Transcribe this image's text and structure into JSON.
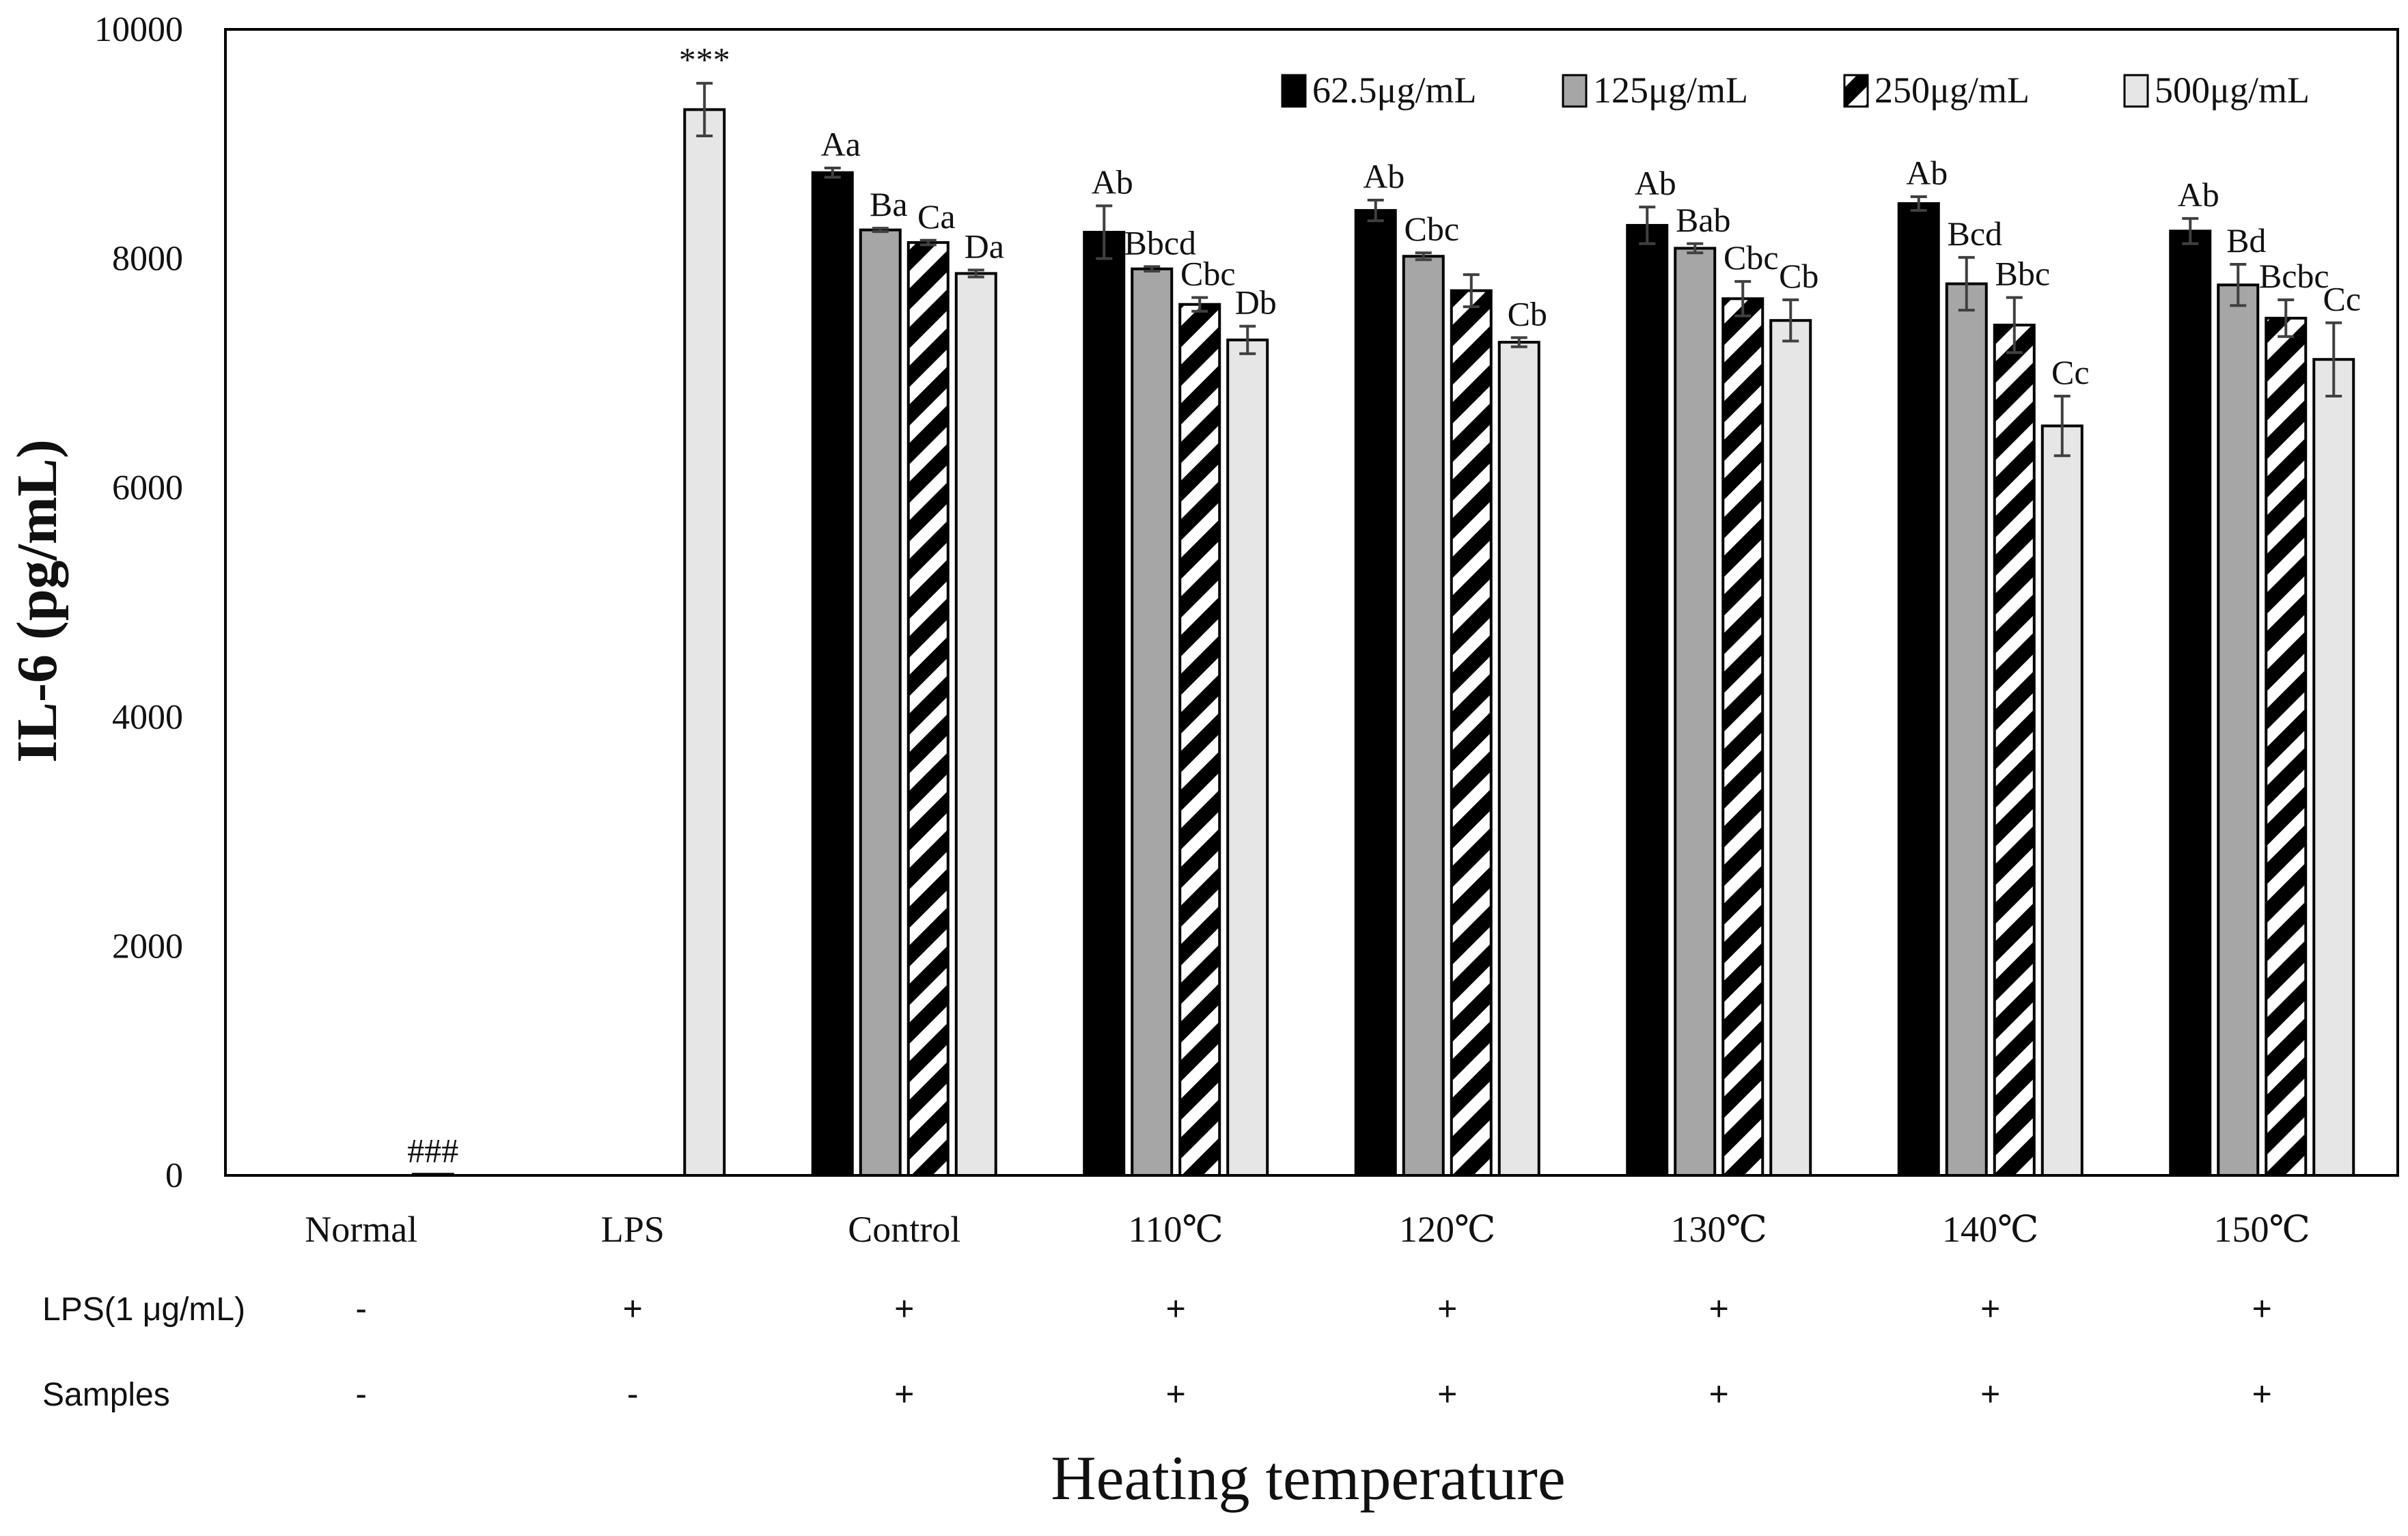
{
  "chart_data": {
    "type": "bar",
    "title": "",
    "xlabel": "Heating temperature",
    "ylabel": "IL-6 (pg/mL)",
    "ylim": [
      0,
      10000
    ],
    "yticks": [
      0,
      2000,
      4000,
      6000,
      8000,
      10000
    ],
    "grid": false,
    "legend_position": "top-right",
    "categories": [
      "Normal",
      "LPS",
      "Control",
      "110℃",
      "120℃",
      "130℃",
      "140℃",
      "150℃"
    ],
    "series": [
      {
        "name": "62.5μg/mL",
        "color": "#000000",
        "pattern": "solid",
        "values": [
          null,
          null,
          8750,
          8230,
          8420,
          8290,
          8480,
          8240
        ],
        "errors": [
          null,
          null,
          40,
          230,
          90,
          160,
          60,
          110
        ],
        "labels": [
          "",
          "",
          "Aa",
          "Ab",
          "Ab",
          "Ab",
          "Ab",
          "Ab"
        ]
      },
      {
        "name": "125μg/mL",
        "color": "#a6a6a6",
        "pattern": "solid",
        "values": [
          null,
          null,
          8250,
          7910,
          8020,
          8090,
          7780,
          7770
        ],
        "errors": [
          null,
          null,
          15,
          20,
          30,
          40,
          230,
          180
        ],
        "labels": [
          "",
          "",
          "Ba",
          "Bbcd",
          "Cbc",
          "Bab",
          "Bcd",
          "Bd"
        ]
      },
      {
        "name": "250μg/mL",
        "color": "#000000",
        "pattern": "diagonal-stripes",
        "values": [
          null,
          null,
          8140,
          7600,
          7720,
          7650,
          7420,
          7480
        ],
        "errors": [
          null,
          null,
          20,
          60,
          140,
          150,
          240,
          160
        ],
        "labels": [
          "",
          "",
          "Ca",
          "Cbc",
          "",
          "Cbc",
          "Bbc",
          "Bcbc"
        ]
      },
      {
        "name": "500μg/mL",
        "color": "#e6e6e6",
        "pattern": "solid",
        "values": [
          10,
          9300,
          7870,
          7290,
          7270,
          7460,
          6540,
          7120
        ],
        "errors": [
          null,
          230,
          30,
          120,
          40,
          180,
          260,
          320
        ],
        "labels": [
          "###",
          "***",
          "Da",
          "Db",
          "Cb",
          "Cb",
          "Cc",
          "Cc"
        ]
      }
    ],
    "condition_rows": [
      {
        "label": "LPS(1 μg/mL)",
        "values": [
          "-",
          "+",
          "+",
          "+",
          "+",
          "+",
          "+",
          "+"
        ]
      },
      {
        "label": "Samples",
        "values": [
          "-",
          "-",
          "+",
          "+",
          "+",
          "+",
          "+",
          "+"
        ]
      }
    ]
  }
}
